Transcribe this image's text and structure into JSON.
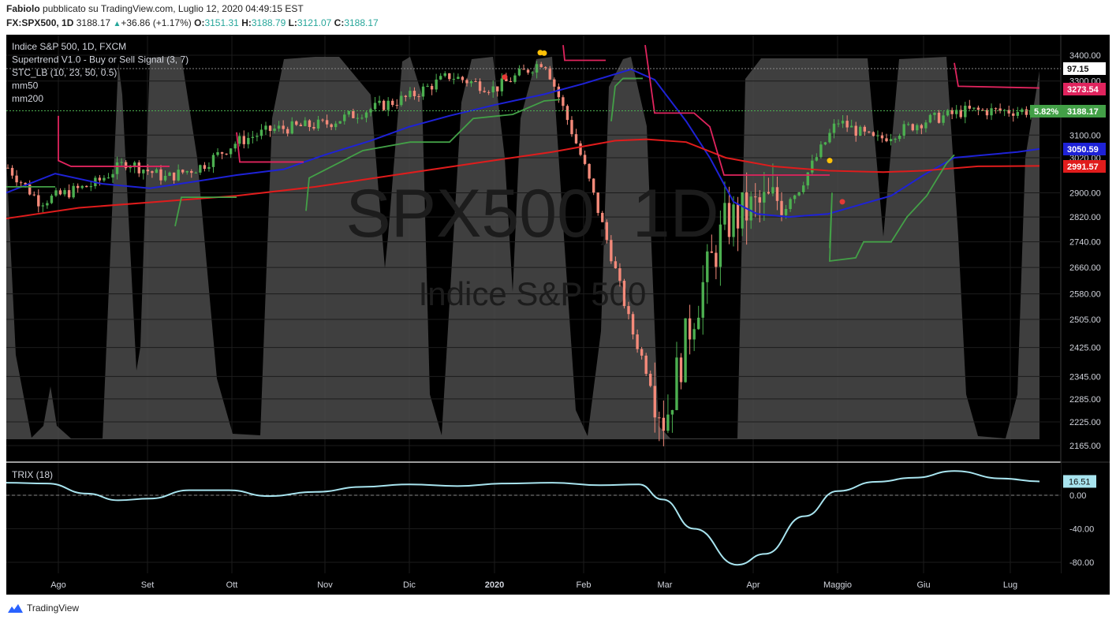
{
  "header": {
    "author": "Fabiolo",
    "published": "pubblicato su TradingView.com, Luglio 12, 2020 04:49:15 EST",
    "ticker": "FX:SPX500, 1D",
    "last": "3188.17",
    "change": "+36.86 (+1.17%)",
    "o_label": "O:",
    "o": "3151.31",
    "h_label": "H:",
    "h": "3188.79",
    "l_label": "L:",
    "l": "3121.07",
    "c_label": "C:",
    "c": "3188.17"
  },
  "legend": {
    "title": "Indice S&P 500, 1D, FXCM",
    "studies": [
      "Supertrend V1.0 - Buy or Sell Signal (3, 7)",
      "STC_LB (10, 23, 50, 0.5)",
      "mm50",
      "mm200"
    ]
  },
  "watermark": {
    "line1": "SPX500, 1D",
    "line2": "Indice S&P 500"
  },
  "price_badges": {
    "stc": "97.15",
    "supertrend": "3273.54",
    "change_pct": "5.82%",
    "last": "3188.17",
    "mm50": "3050.59",
    "mm200": "2991.57"
  },
  "trix_badge": "16.51",
  "trix_label": "TRIX (18)",
  "footer_brand": "TradingView",
  "colors": {
    "background": "#000000",
    "up": "#4caf50",
    "down": "#f48a7a",
    "mm50": "#1e22d6",
    "mm200": "#e01c1c",
    "supertrend_up": "#43a047",
    "supertrend_down": "#e0245e",
    "stc_fill": "#4a4a4a",
    "trix": "#a8e4ef"
  },
  "chart_data": [
    {
      "type": "candlestick",
      "title": "Indice S&P 500, 1D, FXCM",
      "x_ticks": [
        "Ago",
        "Set",
        "Ott",
        "Nov",
        "Dic",
        "2020",
        "Feb",
        "Mar",
        "Apr",
        "Maggio",
        "Giu",
        "Lug"
      ],
      "y_ticks": [
        "3400.00",
        "3300.00",
        "3100.00",
        "3020.00",
        "2900.00",
        "2820.00",
        "2740.00",
        "2660.00",
        "2580.00",
        "2505.00",
        "2425.00",
        "2345.00",
        "2285.00",
        "2225.00",
        "2165.00"
      ],
      "ylim": [
        2150,
        3440
      ],
      "scale": "log",
      "grid": true,
      "close_series": [
        {
          "month": "Ago",
          "value": 2985
        },
        {
          "month": "Ago-mid",
          "value": 2870
        },
        {
          "month": "Set",
          "value": 2930
        },
        {
          "month": "Set-mid",
          "value": 3005
        },
        {
          "month": "Ott",
          "value": 2950
        },
        {
          "month": "Ott-mid",
          "value": 2990
        },
        {
          "month": "Nov",
          "value": 3075
        },
        {
          "month": "Nov-mid",
          "value": 3120
        },
        {
          "month": "Dic",
          "value": 3140
        },
        {
          "month": "Dic-mid",
          "value": 3190
        },
        {
          "month": "2020",
          "value": 3240
        },
        {
          "month": "Gen-mid",
          "value": 3320
        },
        {
          "month": "Feb",
          "value": 3270
        },
        {
          "month": "Feb-mid",
          "value": 3380
        },
        {
          "month": "Mar",
          "value": 3000
        },
        {
          "month": "Mar-mid",
          "value": 2480
        },
        {
          "month": "Mar-late",
          "value": 2225
        },
        {
          "month": "Apr",
          "value": 2530
        },
        {
          "month": "Apr-mid",
          "value": 2800
        },
        {
          "month": "Maggio",
          "value": 2850
        },
        {
          "month": "Mag-mid",
          "value": 2900
        },
        {
          "month": "Giu",
          "value": 3150
        },
        {
          "month": "Giu-mid",
          "value": 3080
        },
        {
          "month": "Lug",
          "value": 3150
        },
        {
          "month": "Lug-last",
          "value": 3188.17
        }
      ],
      "mm50_last": 3050.59,
      "mm200_last": 2991.57,
      "supertrend_last": 3273.54
    },
    {
      "type": "line",
      "title": "TRIX (18)",
      "y_ticks": [
        "0.00",
        "-40.00",
        "-80.00"
      ],
      "ylim": [
        -95,
        30
      ],
      "last": 16.51,
      "values": [
        15,
        14,
        2,
        -6,
        -4,
        6,
        6,
        -1,
        4,
        10,
        13,
        11,
        14,
        15,
        12,
        13,
        -5,
        -40,
        -83,
        -70,
        -25,
        5,
        16,
        21,
        29,
        20,
        16.5
      ]
    }
  ]
}
